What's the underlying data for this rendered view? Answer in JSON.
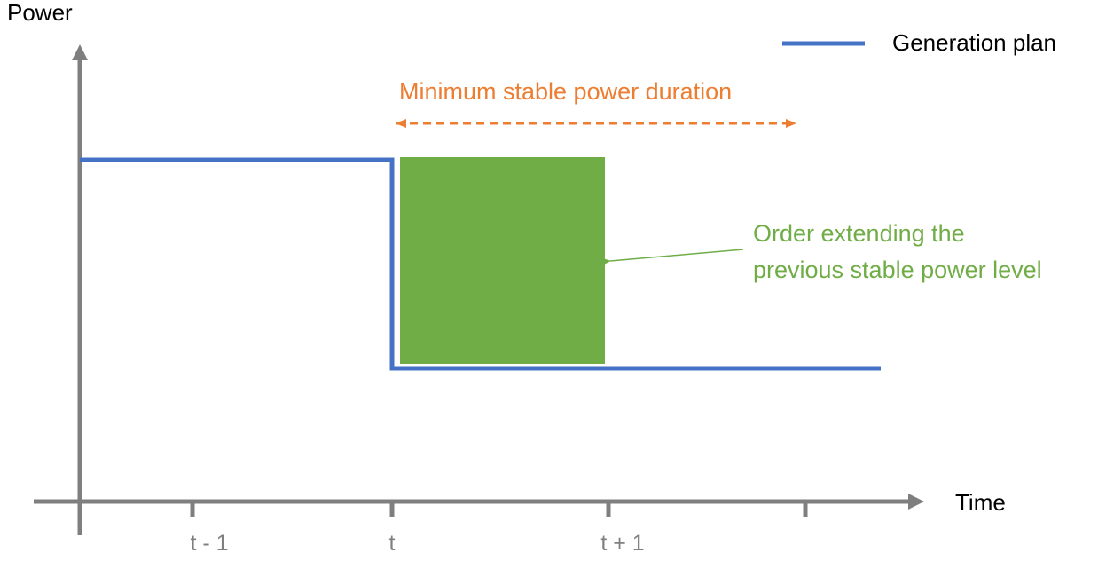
{
  "axes": {
    "y_label": "Power",
    "x_label": "Time",
    "ticks": [
      "t - 1",
      "t",
      "t + 1",
      ""
    ]
  },
  "legend": {
    "label": "Generation plan",
    "color": "#4472C4"
  },
  "duration_label": "Minimum stable power duration",
  "order_label": {
    "line1": "Order extending the",
    "line2": "previous stable power level"
  },
  "colors": {
    "axis": "#7F7F7F",
    "plan": "#4472C4",
    "duration": "#ED7D31",
    "order": "#70AD47",
    "text": "#000000"
  }
}
